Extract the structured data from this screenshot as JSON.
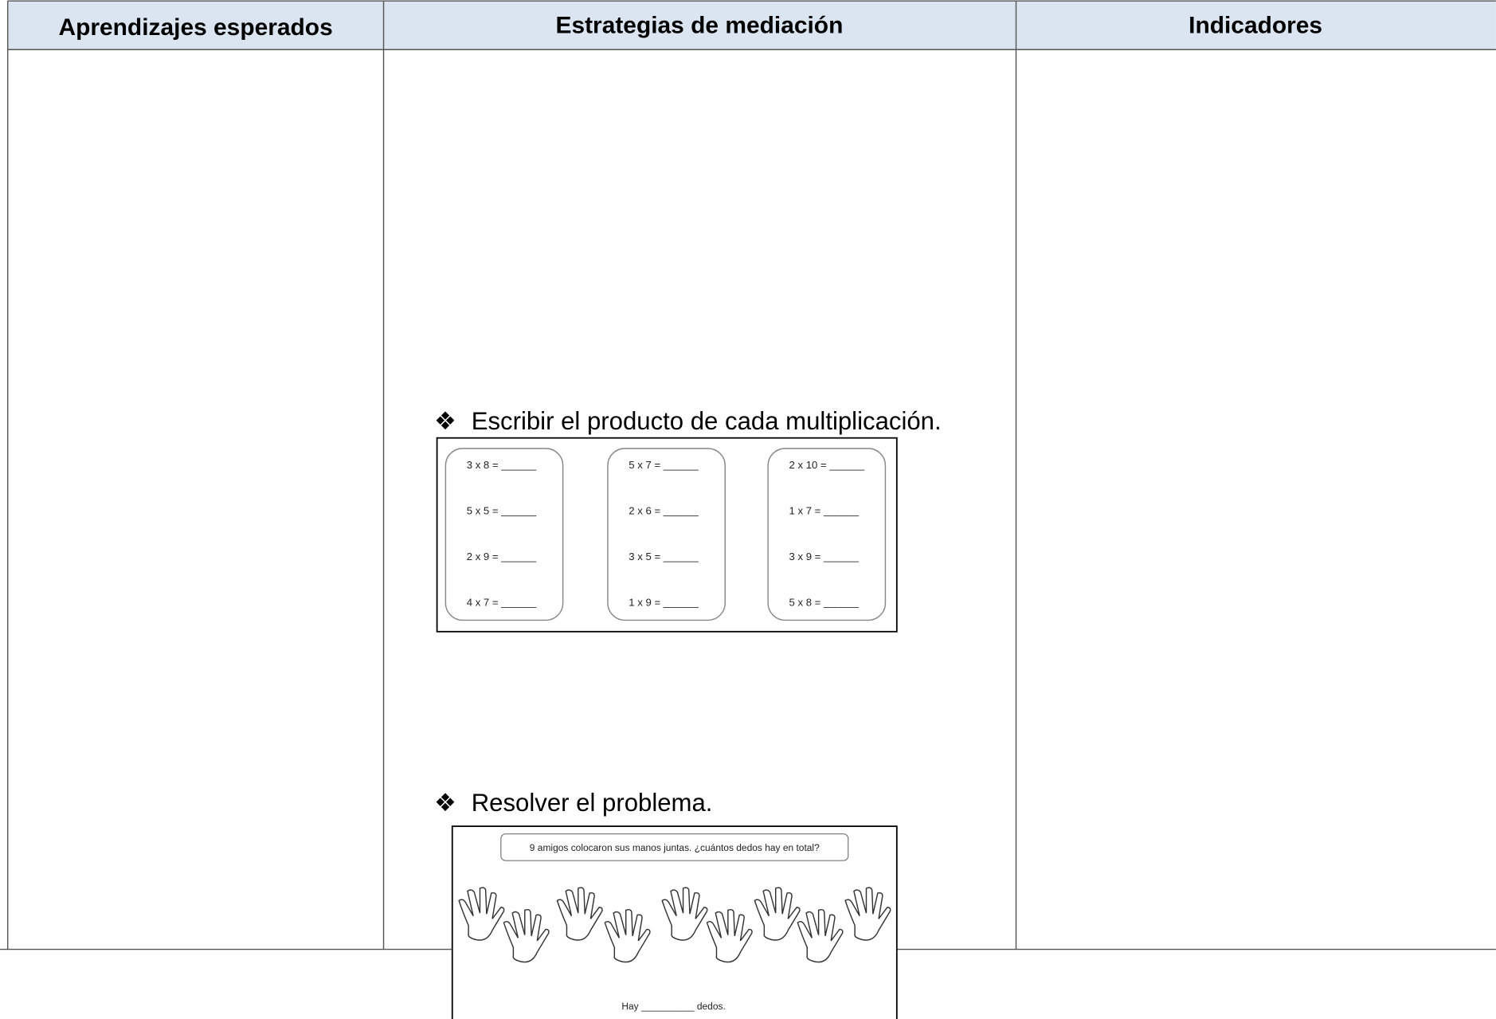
{
  "table": {
    "headers": [
      "Aprendizajes esperados",
      "Estrategias de mediación",
      "Indicadores"
    ]
  },
  "strategies": {
    "bullet": "❖",
    "items": [
      {
        "text": "Escribir el producto de cada multiplicación.",
        "groups": [
          [
            "3 x 8 = ______",
            "5 x 5 = ______",
            "2 x 9 = ______",
            "4 x 7 = ______"
          ],
          [
            "5 x 7 = ______",
            "2 x 6 = ______",
            "3 x 5 = ______",
            "1 x 9 = ______"
          ],
          [
            "2 x 10 = ______",
            "1 x 7 = ______",
            "3 x 9 = ______",
            "5 x 8 = ______"
          ]
        ]
      },
      {
        "text": "Resolver el problema.",
        "problem": "9 amigos colocaron sus manos juntas. ¿cuántos dedos hay en total?",
        "answer": "Hay __________ dedos."
      }
    ]
  }
}
